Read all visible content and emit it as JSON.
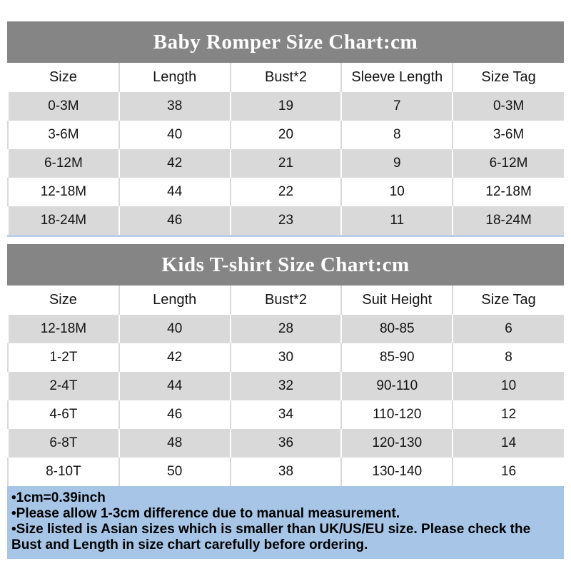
{
  "colors": {
    "title-bar-bg": "#858585",
    "title-text": "#ffffff",
    "row-alt-bg": "#d9d9d9",
    "divider-on-white": "#d9d9d9",
    "underline-blue": "#b7cfea",
    "notes-bg": "#a7c6e7",
    "text": "#141414"
  },
  "tables": [
    {
      "title": "Baby Romper Size Chart:cm",
      "columns": [
        "Size",
        "Length",
        "Bust*2",
        "Sleeve Length",
        "Size Tag"
      ],
      "rows": [
        [
          "0-3M",
          "38",
          "19",
          "7",
          "0-3M"
        ],
        [
          "3-6M",
          "40",
          "20",
          "8",
          "3-6M"
        ],
        [
          "6-12M",
          "42",
          "21",
          "9",
          "6-12M"
        ],
        [
          "12-18M",
          "44",
          "22",
          "10",
          "12-18M"
        ],
        [
          "18-24M",
          "46",
          "23",
          "11",
          "18-24M"
        ]
      ]
    },
    {
      "title": "Kids T-shirt Size Chart:cm",
      "columns": [
        "Size",
        "Length",
        "Bust*2",
        "Suit Height",
        "Size Tag"
      ],
      "rows": [
        [
          "12-18M",
          "40",
          "28",
          "80-85",
          "6"
        ],
        [
          "1-2T",
          "42",
          "30",
          "85-90",
          "8"
        ],
        [
          "2-4T",
          "44",
          "32",
          "90-110",
          "10"
        ],
        [
          "4-6T",
          "46",
          "34",
          "110-120",
          "12"
        ],
        [
          "6-8T",
          "48",
          "36",
          "120-130",
          "14"
        ],
        [
          "8-10T",
          "50",
          "38",
          "130-140",
          "16"
        ]
      ]
    }
  ],
  "notes": {
    "items": [
      "•1cm=0.39inch",
      "•Please allow 1-3cm difference due to manual measurement.",
      "•Size listed is Asian sizes which is smaller than UK/US/EU size. Please check the Bust and Length in size chart carefully before ordering."
    ]
  }
}
